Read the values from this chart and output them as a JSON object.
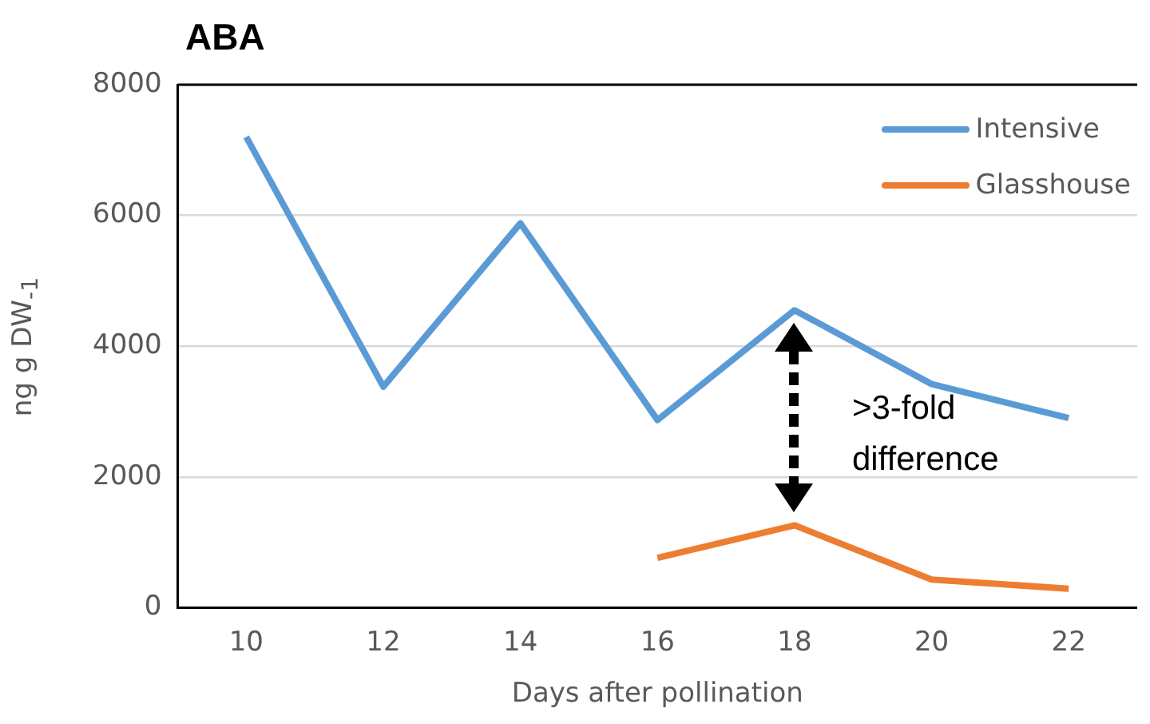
{
  "chart_data": {
    "type": "line",
    "title": "ABA",
    "xlabel": "Days after pollination",
    "ylabel": "ng g DW$_{-1}$",
    "categories": [
      "10",
      "12",
      "14",
      "16",
      "18",
      "20",
      "22"
    ],
    "series": [
      {
        "name": "Intensive",
        "color": "#5b9bd5",
        "values": [
          7200,
          3380,
          5880,
          2870,
          4550,
          3420,
          2900
        ]
      },
      {
        "name": "Glasshouse",
        "color": "#ed7d31",
        "values": [
          null,
          null,
          null,
          760,
          1260,
          430,
          290
        ]
      }
    ],
    "ylim": [
      0,
      8000
    ],
    "yticks": [
      0,
      2000,
      4000,
      6000,
      8000
    ],
    "grid": "y",
    "legend": "top right",
    "marker": "none",
    "line_style": "solid",
    "annotations": [
      ">3-fold difference"
    ]
  }
}
